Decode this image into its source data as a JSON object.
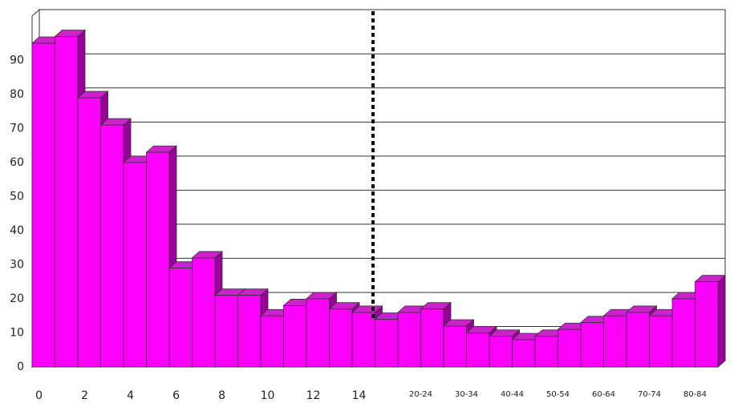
{
  "chart_data": {
    "type": "bar3d",
    "categories": [
      "0",
      null,
      "2",
      null,
      "4",
      null,
      "6",
      null,
      "8",
      null,
      "10",
      null,
      "12",
      null,
      "14",
      null,
      "20-24",
      null,
      "30-34",
      null,
      "40-44",
      null,
      "50-54",
      null,
      "60-64",
      null,
      "70-74",
      null,
      "80-84",
      null
    ],
    "values": [
      95,
      97,
      79,
      71,
      60,
      63,
      29,
      32,
      21,
      21,
      15,
      18,
      20,
      17,
      16,
      14,
      16,
      17,
      12,
      10,
      9,
      8,
      9,
      11,
      13,
      15,
      16,
      15,
      20,
      25
    ],
    "color": "#ff00ff",
    "ylim": [
      0,
      103
    ],
    "yticks": [
      0,
      10,
      20,
      30,
      40,
      50,
      60,
      70,
      80,
      90
    ],
    "grid": true
  }
}
